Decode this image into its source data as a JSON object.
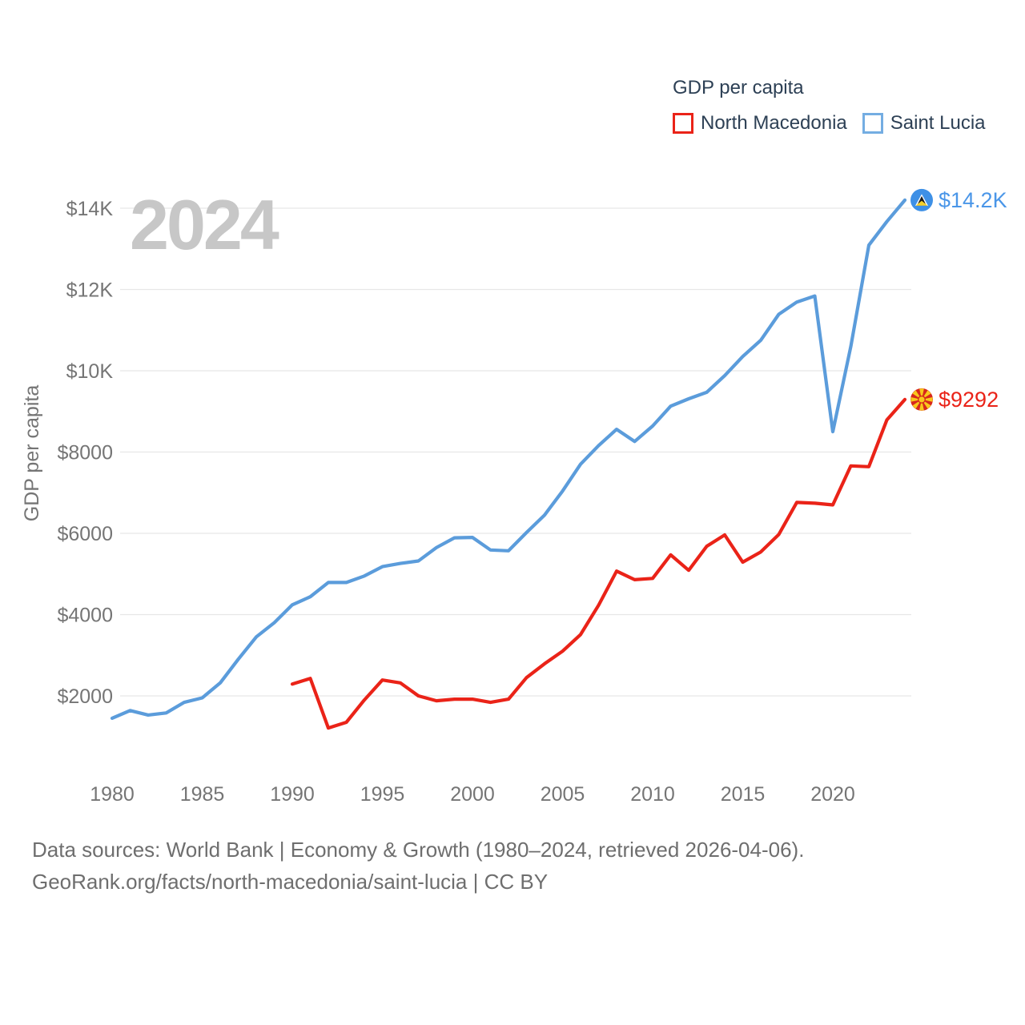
{
  "legend": {
    "title": "GDP per capita",
    "items": [
      {
        "label": "North Macedonia",
        "color": "#ea2318"
      },
      {
        "label": "Saint Lucia",
        "color": "#74ade2"
      }
    ]
  },
  "watermark": "2024",
  "source_line1": "Data sources: World Bank | Economy & Growth (1980–2024, retrieved 2026-04-06).",
  "source_line2": "GeoRank.org/facts/north-macedonia/saint-lucia | CC BY",
  "colors": {
    "north_macedonia_line": "#ea2318",
    "saint_lucia_line": "#5b9cdb",
    "gridline": "#e7e7e7",
    "axis_text": "#757575",
    "heading_text": "#2d4055",
    "watermark_text": "#c7c7c7",
    "saint_lucia_label": "#4a96e8",
    "north_macedonia_label": "#ea2318"
  },
  "chart_data": {
    "type": "line",
    "title": "GDP per capita",
    "xlabel": "",
    "ylabel": "GDP per capita",
    "xlim": [
      1979.5,
      2025
    ],
    "ylim": [
      600,
      14800
    ],
    "grid": "horizontal-only",
    "legend_position": "top-right",
    "y_ticks": [
      {
        "value": 2000,
        "label": "$2000"
      },
      {
        "value": 4000,
        "label": "$4000"
      },
      {
        "value": 6000,
        "label": "$6000"
      },
      {
        "value": 8000,
        "label": "$8000"
      },
      {
        "value": 10000,
        "label": "$10K"
      },
      {
        "value": 12000,
        "label": "$12K"
      },
      {
        "value": 14000,
        "label": "$14K"
      }
    ],
    "x_ticks": [
      {
        "value": 1980,
        "label": "1980"
      },
      {
        "value": 1985,
        "label": "1985"
      },
      {
        "value": 1990,
        "label": "1990"
      },
      {
        "value": 1995,
        "label": "1995"
      },
      {
        "value": 2000,
        "label": "2000"
      },
      {
        "value": 2005,
        "label": "2005"
      },
      {
        "value": 2010,
        "label": "2010"
      },
      {
        "value": 2015,
        "label": "2015"
      },
      {
        "value": 2020,
        "label": "2020"
      }
    ],
    "series": [
      {
        "name": "North Macedonia",
        "color": "#ea2318",
        "points": [
          [
            1990,
            2290
          ],
          [
            1991,
            2430
          ],
          [
            1992,
            1210
          ],
          [
            1993,
            1350
          ],
          [
            1994,
            1900
          ],
          [
            1995,
            2390
          ],
          [
            1996,
            2320
          ],
          [
            1997,
            2000
          ],
          [
            1998,
            1880
          ],
          [
            1999,
            1920
          ],
          [
            2000,
            1920
          ],
          [
            2001,
            1840
          ],
          [
            2002,
            1920
          ],
          [
            2003,
            2450
          ],
          [
            2004,
            2790
          ],
          [
            2005,
            3100
          ],
          [
            2006,
            3510
          ],
          [
            2007,
            4230
          ],
          [
            2008,
            5070
          ],
          [
            2009,
            4860
          ],
          [
            2010,
            4890
          ],
          [
            2011,
            5470
          ],
          [
            2012,
            5090
          ],
          [
            2013,
            5680
          ],
          [
            2014,
            5960
          ],
          [
            2015,
            5290
          ],
          [
            2016,
            5540
          ],
          [
            2017,
            5970
          ],
          [
            2018,
            6760
          ],
          [
            2019,
            6740
          ],
          [
            2020,
            6700
          ],
          [
            2021,
            7660
          ],
          [
            2022,
            7640
          ],
          [
            2023,
            8790
          ],
          [
            2024,
            9292
          ]
        ]
      },
      {
        "name": "Saint Lucia",
        "color": "#5b9cdb",
        "points": [
          [
            1980,
            1450
          ],
          [
            1981,
            1640
          ],
          [
            1982,
            1530
          ],
          [
            1983,
            1580
          ],
          [
            1984,
            1840
          ],
          [
            1985,
            1950
          ],
          [
            1986,
            2320
          ],
          [
            1987,
            2900
          ],
          [
            1988,
            3450
          ],
          [
            1989,
            3800
          ],
          [
            1990,
            4240
          ],
          [
            1991,
            4440
          ],
          [
            1992,
            4790
          ],
          [
            1993,
            4790
          ],
          [
            1994,
            4950
          ],
          [
            1995,
            5180
          ],
          [
            1996,
            5260
          ],
          [
            1997,
            5320
          ],
          [
            1998,
            5650
          ],
          [
            1999,
            5890
          ],
          [
            2000,
            5900
          ],
          [
            2001,
            5590
          ],
          [
            2002,
            5570
          ],
          [
            2003,
            6020
          ],
          [
            2004,
            6450
          ],
          [
            2005,
            7040
          ],
          [
            2006,
            7700
          ],
          [
            2007,
            8160
          ],
          [
            2008,
            8560
          ],
          [
            2009,
            8260
          ],
          [
            2010,
            8640
          ],
          [
            2011,
            9130
          ],
          [
            2012,
            9310
          ],
          [
            2013,
            9470
          ],
          [
            2014,
            9880
          ],
          [
            2015,
            10350
          ],
          [
            2016,
            10750
          ],
          [
            2017,
            11390
          ],
          [
            2018,
            11690
          ],
          [
            2019,
            11840
          ],
          [
            2020,
            8500
          ],
          [
            2021,
            10600
          ],
          [
            2022,
            13090
          ],
          [
            2023,
            13670
          ],
          [
            2024,
            14200
          ]
        ]
      }
    ],
    "end_markers": [
      {
        "series": "Saint Lucia",
        "year": 2024,
        "value": 14200,
        "label": "$14.2K",
        "flag": "saint-lucia",
        "label_color": "#4a96e8",
        "circle_color": "#3e90e6"
      },
      {
        "series": "North Macedonia",
        "year": 2024,
        "value": 9292,
        "label": "$9292",
        "flag": "north-macedonia",
        "label_color": "#ea2318",
        "circle_color": "#d7271d"
      }
    ]
  }
}
